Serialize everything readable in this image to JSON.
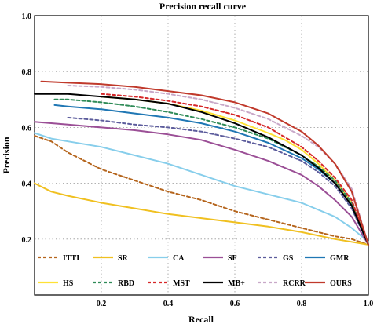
{
  "chart_data": {
    "type": "line",
    "title": "Precision recall curve",
    "xlabel": "Recall",
    "ylabel": "Precision",
    "xlim": [
      0,
      1.0
    ],
    "ylim": [
      0,
      1.0
    ],
    "x_ticks": [
      "0.2",
      "0.4",
      "0.6",
      "0.8",
      "1.0"
    ],
    "y_ticks": [
      "0.2",
      "0.4",
      "0.6",
      "0.8",
      "1.0"
    ],
    "grid": "dotted",
    "legend_placement": "bottom-inside",
    "series": [
      {
        "name": "ITTI",
        "color": "#b5651d",
        "dash": "dashed",
        "x": [
          0.0,
          0.05,
          0.1,
          0.2,
          0.3,
          0.4,
          0.5,
          0.6,
          0.7,
          0.8,
          0.9,
          0.95,
          1.0
        ],
        "y": [
          0.57,
          0.55,
          0.51,
          0.45,
          0.41,
          0.37,
          0.34,
          0.3,
          0.27,
          0.24,
          0.21,
          0.2,
          0.18
        ]
      },
      {
        "name": "SR",
        "color": "#f0c020",
        "dash": "solid",
        "x": [
          0.0,
          0.05,
          0.1,
          0.2,
          0.3,
          0.4,
          0.5,
          0.6,
          0.7,
          0.8,
          0.9,
          1.0
        ],
        "y": [
          0.4,
          0.37,
          0.355,
          0.33,
          0.31,
          0.29,
          0.275,
          0.26,
          0.245,
          0.225,
          0.2,
          0.18
        ]
      },
      {
        "name": "CA",
        "color": "#87ceeb",
        "dash": "solid",
        "x": [
          0.0,
          0.05,
          0.1,
          0.2,
          0.3,
          0.4,
          0.5,
          0.6,
          0.7,
          0.8,
          0.9,
          0.95,
          1.0
        ],
        "y": [
          0.58,
          0.56,
          0.55,
          0.53,
          0.5,
          0.47,
          0.43,
          0.39,
          0.36,
          0.33,
          0.28,
          0.24,
          0.19
        ]
      },
      {
        "name": "SF",
        "color": "#9b4f96",
        "dash": "solid",
        "x": [
          0.0,
          0.1,
          0.2,
          0.3,
          0.4,
          0.5,
          0.6,
          0.7,
          0.8,
          0.85,
          0.9,
          0.95,
          1.0
        ],
        "y": [
          0.62,
          0.61,
          0.6,
          0.59,
          0.575,
          0.555,
          0.52,
          0.48,
          0.43,
          0.39,
          0.34,
          0.28,
          0.18
        ]
      },
      {
        "name": "GS",
        "color": "#5c5c9c",
        "dash": "dashed",
        "x": [
          0.1,
          0.2,
          0.3,
          0.4,
          0.5,
          0.6,
          0.7,
          0.8,
          0.85,
          0.9,
          0.95,
          1.0
        ],
        "y": [
          0.635,
          0.625,
          0.61,
          0.6,
          0.585,
          0.56,
          0.53,
          0.48,
          0.44,
          0.39,
          0.31,
          0.18
        ]
      },
      {
        "name": "GMR",
        "color": "#1f77b4",
        "dash": "solid",
        "x": [
          0.06,
          0.1,
          0.2,
          0.3,
          0.4,
          0.5,
          0.6,
          0.7,
          0.8,
          0.85,
          0.9,
          0.95,
          1.0
        ],
        "y": [
          0.68,
          0.675,
          0.665,
          0.65,
          0.635,
          0.615,
          0.585,
          0.545,
          0.49,
          0.45,
          0.4,
          0.32,
          0.18
        ]
      },
      {
        "name": "HS",
        "color": "#ffe135",
        "dash": "solid",
        "x": [
          0.2,
          0.3,
          0.4,
          0.5,
          0.6,
          0.7,
          0.75,
          0.8,
          0.85,
          0.9,
          0.95,
          1.0
        ],
        "y": [
          0.71,
          0.7,
          0.685,
          0.66,
          0.625,
          0.58,
          0.555,
          0.52,
          0.47,
          0.41,
          0.33,
          0.18
        ]
      },
      {
        "name": "RBD",
        "color": "#2e8b57",
        "dash": "dashed",
        "x": [
          0.06,
          0.1,
          0.2,
          0.3,
          0.4,
          0.5,
          0.6,
          0.7,
          0.8,
          0.85,
          0.9,
          0.95,
          1.0
        ],
        "y": [
          0.7,
          0.7,
          0.69,
          0.675,
          0.655,
          0.63,
          0.6,
          0.56,
          0.5,
          0.46,
          0.41,
          0.33,
          0.18
        ]
      },
      {
        "name": "MST",
        "color": "#d62728",
        "dash": "dashed",
        "x": [
          0.2,
          0.3,
          0.4,
          0.5,
          0.6,
          0.7,
          0.8,
          0.85,
          0.9,
          0.95,
          1.0
        ],
        "y": [
          0.72,
          0.71,
          0.695,
          0.675,
          0.645,
          0.6,
          0.53,
          0.48,
          0.42,
          0.34,
          0.18
        ]
      },
      {
        "name": "MB+",
        "color": "#000000",
        "dash": "solid",
        "x": [
          0.0,
          0.1,
          0.2,
          0.3,
          0.4,
          0.5,
          0.6,
          0.7,
          0.8,
          0.85,
          0.9,
          0.95,
          1.0
        ],
        "y": [
          0.72,
          0.72,
          0.71,
          0.7,
          0.685,
          0.655,
          0.615,
          0.565,
          0.5,
          0.455,
          0.4,
          0.32,
          0.18
        ]
      },
      {
        "name": "RCRR",
        "color": "#c8a8c8",
        "dash": "dashed",
        "x": [
          0.1,
          0.2,
          0.3,
          0.4,
          0.5,
          0.6,
          0.7,
          0.8,
          0.85,
          0.9,
          0.95,
          1.0
        ],
        "y": [
          0.75,
          0.745,
          0.735,
          0.72,
          0.7,
          0.67,
          0.63,
          0.57,
          0.53,
          0.47,
          0.38,
          0.18
        ]
      },
      {
        "name": "OURS",
        "color": "#c0392b",
        "dash": "solid",
        "x": [
          0.02,
          0.1,
          0.2,
          0.3,
          0.4,
          0.5,
          0.6,
          0.7,
          0.8,
          0.85,
          0.9,
          0.95,
          1.0
        ],
        "y": [
          0.765,
          0.76,
          0.755,
          0.745,
          0.73,
          0.715,
          0.69,
          0.65,
          0.585,
          0.535,
          0.47,
          0.37,
          0.18
        ]
      }
    ]
  }
}
